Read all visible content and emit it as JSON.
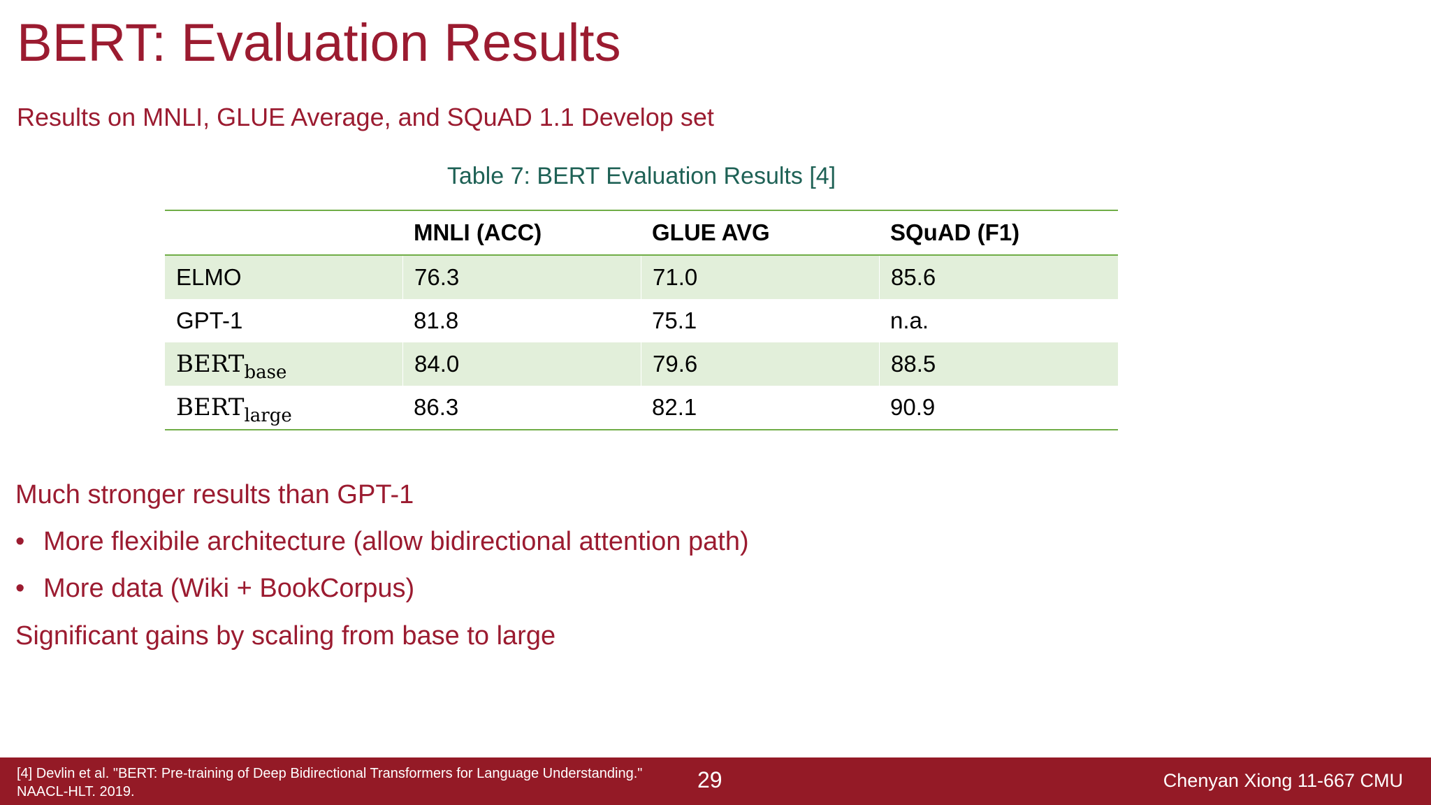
{
  "slide": {
    "title": "BERT: Evaluation Results",
    "subtitle": "Results on MNLI, GLUE Average, and SQuAD 1.1 Develop set"
  },
  "table": {
    "caption": "Table 7: BERT Evaluation Results [4]",
    "headers": [
      "",
      "MNLI (ACC)",
      "GLUE AVG",
      "SQuAD (F1)"
    ],
    "rows": [
      {
        "model": "ELMO",
        "sub": "",
        "mnli": "76.3",
        "glue": "71.0",
        "squad": "85.6"
      },
      {
        "model": "GPT-1",
        "sub": "",
        "mnli": "81.8",
        "glue": "75.1",
        "squad": "n.a."
      },
      {
        "model": "BERT",
        "sub": "base",
        "mnli": "84.0",
        "glue": "79.6",
        "squad": "88.5"
      },
      {
        "model": "BERT",
        "sub": "large",
        "mnli": "86.3",
        "glue": "82.1",
        "squad": "90.9"
      }
    ]
  },
  "body": {
    "point1": "Much stronger results than GPT-1",
    "bullets": [
      "More flexibile architecture (allow bidirectional attention path)",
      "More data (Wiki + BookCorpus)"
    ],
    "point2": "Significant gains by scaling from base to large"
  },
  "footer": {
    "reference_line1": "[4] Devlin et al. \"BERT: Pre-training of Deep Bidirectional Transformers for Language Understanding.\"",
    "reference_line2": "NAACL-HLT. 2019.",
    "page_number": "29",
    "author": "Chenyan Xiong 11-667 CMU"
  },
  "colors": {
    "accent": "#9b1b30",
    "caption": "#1e6155",
    "table_rule": "#70ad47",
    "band": "#e2efda",
    "footer_bg": "#941a26"
  }
}
